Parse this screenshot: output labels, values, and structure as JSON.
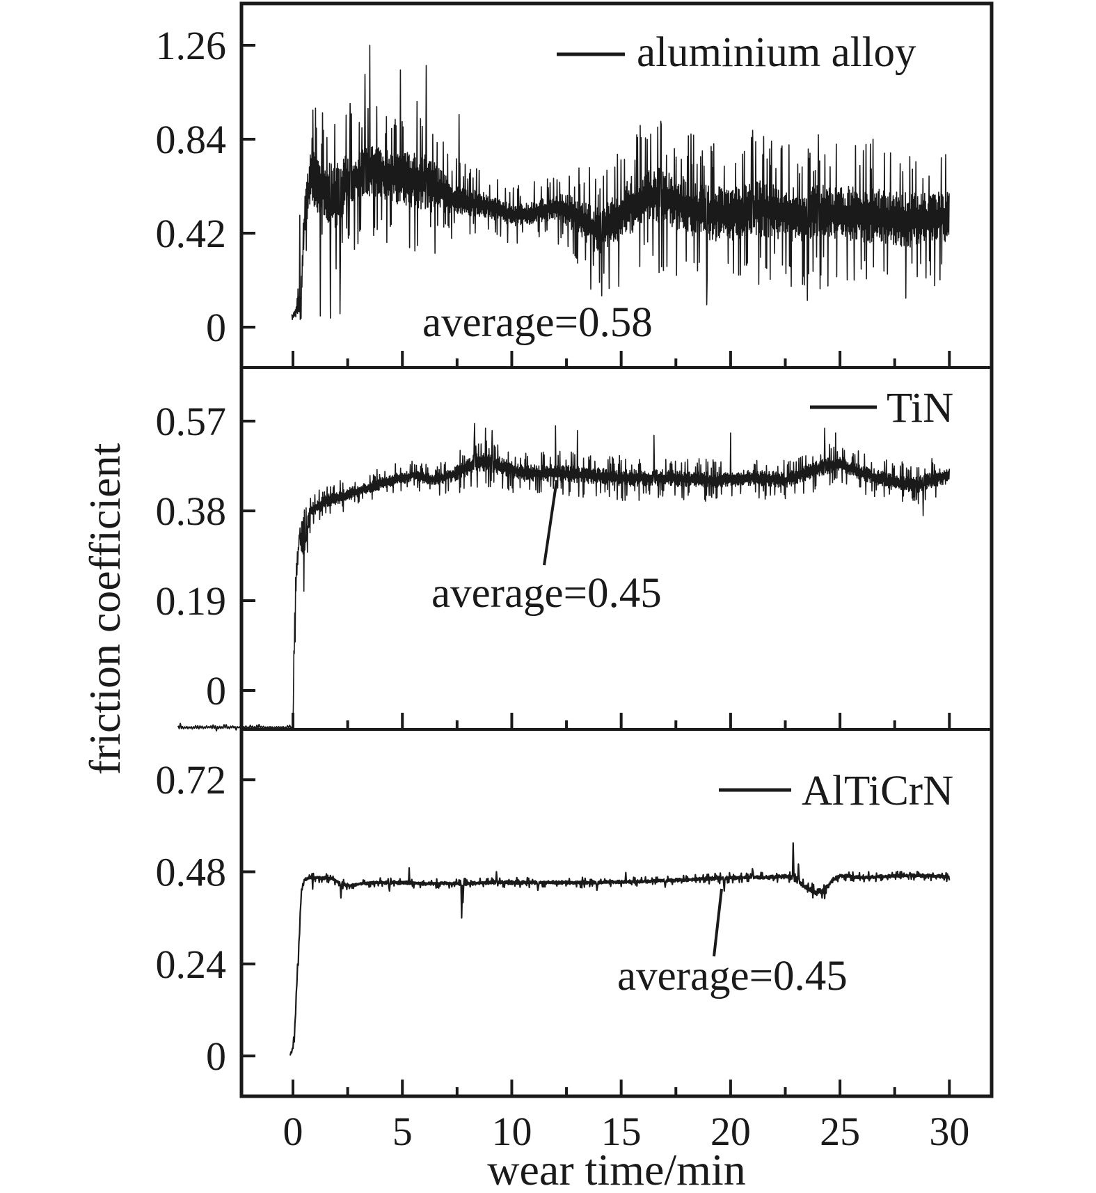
{
  "figure": {
    "ylabel": "friction coefficient",
    "xlabel": "wear time/min",
    "background": "#ffffff",
    "ink": "#1a1a1a"
  },
  "axes": {
    "x": {
      "lim": [
        -2.354,
        31.93
      ],
      "major_ticks": [
        0,
        5,
        10,
        15,
        20,
        25,
        30
      ],
      "minor_ticks": [
        2.5,
        7.5,
        12.5,
        17.5,
        22.5,
        27.5
      ],
      "tick_labels": [
        "0",
        "5",
        "10",
        "15",
        "20",
        "25",
        "30"
      ]
    }
  },
  "chart_data": [
    {
      "type": "line",
      "series": "aluminium alloy",
      "legend": "aluminium alloy",
      "annotation": "average=0.58",
      "average": 0.58,
      "ylim": [
        -0.1805,
        1.4468
      ],
      "yticks": [
        {
          "v": 0,
          "label": "0"
        },
        {
          "v": 0.42,
          "label": "0.42"
        },
        {
          "v": 0.84,
          "label": "0.84"
        },
        {
          "v": 1.26,
          "label": "1.26"
        }
      ],
      "seed": 7,
      "step": 0.02,
      "clamp": [
        0.005,
        1.3
      ],
      "envelope": [
        [
          -0.05,
          0.04,
          0.015
        ],
        [
          0.15,
          0.07,
          0.03
        ],
        [
          0.35,
          0.12,
          0.06
        ],
        [
          0.55,
          0.5,
          0.12
        ],
        [
          0.8,
          0.68,
          0.15
        ],
        [
          1.3,
          0.62,
          0.18
        ],
        [
          1.9,
          0.58,
          0.19
        ],
        [
          2.5,
          0.65,
          0.17
        ],
        [
          3.1,
          0.68,
          0.15
        ],
        [
          3.6,
          0.72,
          0.18
        ],
        [
          4.2,
          0.68,
          0.15
        ],
        [
          5.0,
          0.66,
          0.16
        ],
        [
          5.8,
          0.66,
          0.18
        ],
        [
          6.5,
          0.62,
          0.15
        ],
        [
          7.2,
          0.58,
          0.1
        ],
        [
          8.0,
          0.56,
          0.08
        ],
        [
          9.0,
          0.54,
          0.075
        ],
        [
          10.0,
          0.5,
          0.065
        ],
        [
          11.0,
          0.51,
          0.07
        ],
        [
          12.0,
          0.54,
          0.08
        ],
        [
          13.0,
          0.5,
          0.11
        ],
        [
          13.9,
          0.43,
          0.14
        ],
        [
          14.6,
          0.47,
          0.15
        ],
        [
          15.5,
          0.55,
          0.17
        ],
        [
          16.5,
          0.59,
          0.17
        ],
        [
          17.5,
          0.56,
          0.17
        ],
        [
          18.5,
          0.52,
          0.165
        ],
        [
          20.0,
          0.5,
          0.165
        ],
        [
          21.5,
          0.53,
          0.17
        ],
        [
          23.0,
          0.5,
          0.165
        ],
        [
          24.5,
          0.51,
          0.17
        ],
        [
          26.0,
          0.5,
          0.17
        ],
        [
          27.5,
          0.48,
          0.17
        ],
        [
          29.0,
          0.48,
          0.165
        ],
        [
          30.0,
          0.5,
          0.15
        ]
      ],
      "spikes": [
        [
          0.3,
          0.5
        ],
        [
          0.9,
          0.97
        ],
        [
          1.25,
          0.05
        ],
        [
          1.7,
          0.04
        ],
        [
          2.15,
          0.06
        ],
        [
          2.6,
          1.0
        ],
        [
          3.3,
          1.13
        ],
        [
          3.5,
          1.26
        ],
        [
          4.9,
          1.15
        ],
        [
          6.1,
          1.17
        ],
        [
          7.6,
          0.95
        ],
        [
          13.6,
          0.17
        ],
        [
          14.1,
          0.14
        ],
        [
          16.8,
          0.92
        ],
        [
          18.9,
          0.1
        ],
        [
          21.0,
          0.88
        ],
        [
          23.5,
          0.12
        ],
        [
          24.0,
          0.86
        ],
        [
          26.5,
          0.84
        ],
        [
          28.0,
          0.13
        ]
      ]
    },
    {
      "type": "line",
      "series": "TiN",
      "legend": "TiN",
      "annotation": "average=0.45",
      "average": 0.45,
      "ylim": [
        -0.0825,
        0.6834
      ],
      "yticks": [
        {
          "v": 0,
          "label": "0"
        },
        {
          "v": 0.19,
          "label": "0.19"
        },
        {
          "v": 0.38,
          "label": "0.38"
        },
        {
          "v": 0.57,
          "label": "0.57"
        }
      ],
      "seed": 12,
      "step": 0.02,
      "clamp": [
        -0.085,
        0.58
      ],
      "pre_segment": {
        "t0": -5.25,
        "t1": 0.0,
        "value": -0.078,
        "amp": 0.005,
        "seed": 5,
        "step": 0.05
      },
      "envelope": [
        [
          0.0,
          -0.078,
          0.0
        ],
        [
          0.05,
          0.08,
          0.04
        ],
        [
          0.12,
          0.22,
          0.04
        ],
        [
          0.3,
          0.33,
          0.03
        ],
        [
          0.5,
          0.3,
          0.045
        ],
        [
          0.8,
          0.38,
          0.02
        ],
        [
          1.5,
          0.4,
          0.02
        ],
        [
          2.5,
          0.415,
          0.018
        ],
        [
          3.5,
          0.43,
          0.016
        ],
        [
          4.5,
          0.445,
          0.018
        ],
        [
          5.5,
          0.455,
          0.016
        ],
        [
          6.5,
          0.445,
          0.016
        ],
        [
          7.5,
          0.46,
          0.022
        ],
        [
          8.5,
          0.485,
          0.028
        ],
        [
          9.5,
          0.475,
          0.025
        ],
        [
          10.5,
          0.46,
          0.023
        ],
        [
          12.0,
          0.46,
          0.025
        ],
        [
          13.5,
          0.455,
          0.023
        ],
        [
          15.0,
          0.45,
          0.025
        ],
        [
          17.0,
          0.45,
          0.023
        ],
        [
          19.0,
          0.445,
          0.023
        ],
        [
          21.0,
          0.45,
          0.023
        ],
        [
          22.5,
          0.445,
          0.022
        ],
        [
          24.0,
          0.47,
          0.025
        ],
        [
          25.0,
          0.48,
          0.023
        ],
        [
          26.0,
          0.46,
          0.022
        ],
        [
          27.5,
          0.44,
          0.023
        ],
        [
          28.5,
          0.435,
          0.023
        ],
        [
          29.5,
          0.45,
          0.025
        ],
        [
          30.0,
          0.455,
          0.022
        ]
      ],
      "spikes": [
        [
          0.5,
          0.21
        ],
        [
          8.3,
          0.565
        ],
        [
          8.8,
          0.555
        ],
        [
          9.1,
          0.55
        ],
        [
          12.0,
          0.56
        ],
        [
          13.0,
          0.55
        ],
        [
          16.5,
          0.54
        ],
        [
          20.0,
          0.545
        ],
        [
          24.3,
          0.555
        ],
        [
          24.8,
          0.545
        ],
        [
          28.8,
          0.37
        ]
      ]
    },
    {
      "type": "line",
      "series": "AlTiCrN",
      "legend": "AlTiCrN",
      "annotation": "average=0.45",
      "average": 0.45,
      "ylim": [
        -0.105,
        0.851
      ],
      "yticks": [
        {
          "v": 0,
          "label": "0"
        },
        {
          "v": 0.24,
          "label": "0.24"
        },
        {
          "v": 0.48,
          "label": "0.48"
        },
        {
          "v": 0.72,
          "label": "0.72"
        }
      ],
      "seed": 23,
      "step": 0.03,
      "clamp": [
        -0.01,
        0.57
      ],
      "envelope": [
        [
          -0.15,
          0.0,
          0.003
        ],
        [
          0.05,
          0.03,
          0.012
        ],
        [
          0.12,
          0.12,
          0.02
        ],
        [
          0.2,
          0.22,
          0.015
        ],
        [
          0.28,
          0.3,
          0.012
        ],
        [
          0.38,
          0.43,
          0.01
        ],
        [
          0.55,
          0.462,
          0.007
        ],
        [
          1.0,
          0.465,
          0.006
        ],
        [
          1.8,
          0.462,
          0.006
        ],
        [
          2.2,
          0.449,
          0.007
        ],
        [
          2.6,
          0.444,
          0.006
        ],
        [
          3.2,
          0.45,
          0.006
        ],
        [
          4.0,
          0.452,
          0.006
        ],
        [
          5.0,
          0.452,
          0.007
        ],
        [
          6.0,
          0.449,
          0.006
        ],
        [
          7.0,
          0.45,
          0.006
        ],
        [
          8.0,
          0.449,
          0.007
        ],
        [
          9.0,
          0.452,
          0.006
        ],
        [
          10.0,
          0.452,
          0.007
        ],
        [
          11.5,
          0.452,
          0.006
        ],
        [
          13.0,
          0.452,
          0.007
        ],
        [
          14.5,
          0.453,
          0.006
        ],
        [
          16.0,
          0.455,
          0.006
        ],
        [
          17.5,
          0.458,
          0.006
        ],
        [
          19.0,
          0.462,
          0.007
        ],
        [
          20.5,
          0.465,
          0.007
        ],
        [
          21.5,
          0.465,
          0.007
        ],
        [
          22.6,
          0.468,
          0.008
        ],
        [
          23.0,
          0.46,
          0.012
        ],
        [
          23.4,
          0.44,
          0.013
        ],
        [
          23.9,
          0.426,
          0.012
        ],
        [
          24.3,
          0.432,
          0.012
        ],
        [
          24.6,
          0.455,
          0.01
        ],
        [
          25.0,
          0.47,
          0.007
        ],
        [
          26.0,
          0.465,
          0.006
        ],
        [
          27.0,
          0.468,
          0.006
        ],
        [
          28.0,
          0.47,
          0.006
        ],
        [
          29.0,
          0.47,
          0.006
        ],
        [
          30.0,
          0.466,
          0.006
        ]
      ],
      "spikes": [
        [
          0.9,
          0.435
        ],
        [
          2.2,
          0.412
        ],
        [
          4.4,
          0.43
        ],
        [
          5.3,
          0.49
        ],
        [
          7.7,
          0.36
        ],
        [
          7.76,
          0.4
        ],
        [
          9.3,
          0.48
        ],
        [
          11.2,
          0.432
        ],
        [
          13.9,
          0.432
        ],
        [
          15.2,
          0.478
        ],
        [
          17.0,
          0.44
        ],
        [
          19.7,
          0.43
        ],
        [
          21.0,
          0.488
        ],
        [
          22.85,
          0.555
        ],
        [
          23.1,
          0.5
        ],
        [
          26.3,
          0.48
        ],
        [
          28.2,
          0.478
        ]
      ]
    }
  ]
}
